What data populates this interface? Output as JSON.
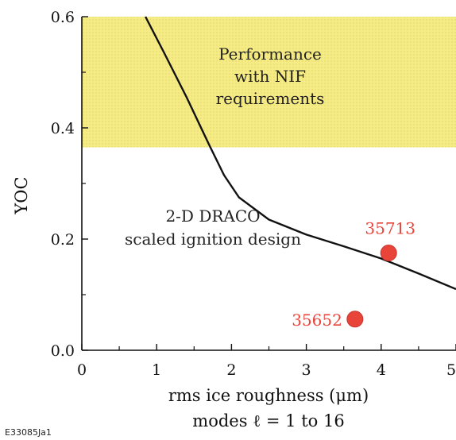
{
  "chart_data": {
    "type": "scatter",
    "title": "",
    "xlabel_line1": "rms ice roughness (μm)",
    "xlabel_line2": "modes ℓ = 1 to 16",
    "ylabel": "YOC",
    "xlim": [
      0,
      5
    ],
    "ylim": [
      0,
      0.6
    ],
    "x_ticks": [
      0,
      1,
      2,
      3,
      4,
      5
    ],
    "x_tick_labels": [
      "0",
      "1",
      "2",
      "3",
      "4",
      "5"
    ],
    "y_ticks": [
      0.0,
      0.2,
      0.4,
      0.6
    ],
    "y_tick_labels": [
      "0.0",
      "0.2",
      "0.4",
      "0.6"
    ],
    "grid": false,
    "shaded_region": {
      "label_lines": [
        "Performance",
        "with NIF",
        "requirements"
      ],
      "y_from": 0.365,
      "y_to": 0.6,
      "color": "#f6ec86"
    },
    "curve": {
      "label_lines": [
        "2-D DRACO",
        "scaled ignition design"
      ],
      "color": "#111111",
      "x": [
        0.85,
        1.1,
        1.4,
        1.7,
        1.9,
        2.1,
        2.5,
        3.0,
        3.5,
        4.0,
        4.5,
        5.0
      ],
      "y": [
        0.6,
        0.535,
        0.455,
        0.37,
        0.315,
        0.275,
        0.235,
        0.208,
        0.187,
        0.165,
        0.138,
        0.11
      ]
    },
    "points": [
      {
        "label": "35713",
        "x": 4.1,
        "y": 0.175
      },
      {
        "label": "35652",
        "x": 3.65,
        "y": 0.056
      }
    ],
    "point_color": "#e8443a",
    "point_label_color": "#e8443a",
    "figure_code": "E33085Ja1"
  }
}
